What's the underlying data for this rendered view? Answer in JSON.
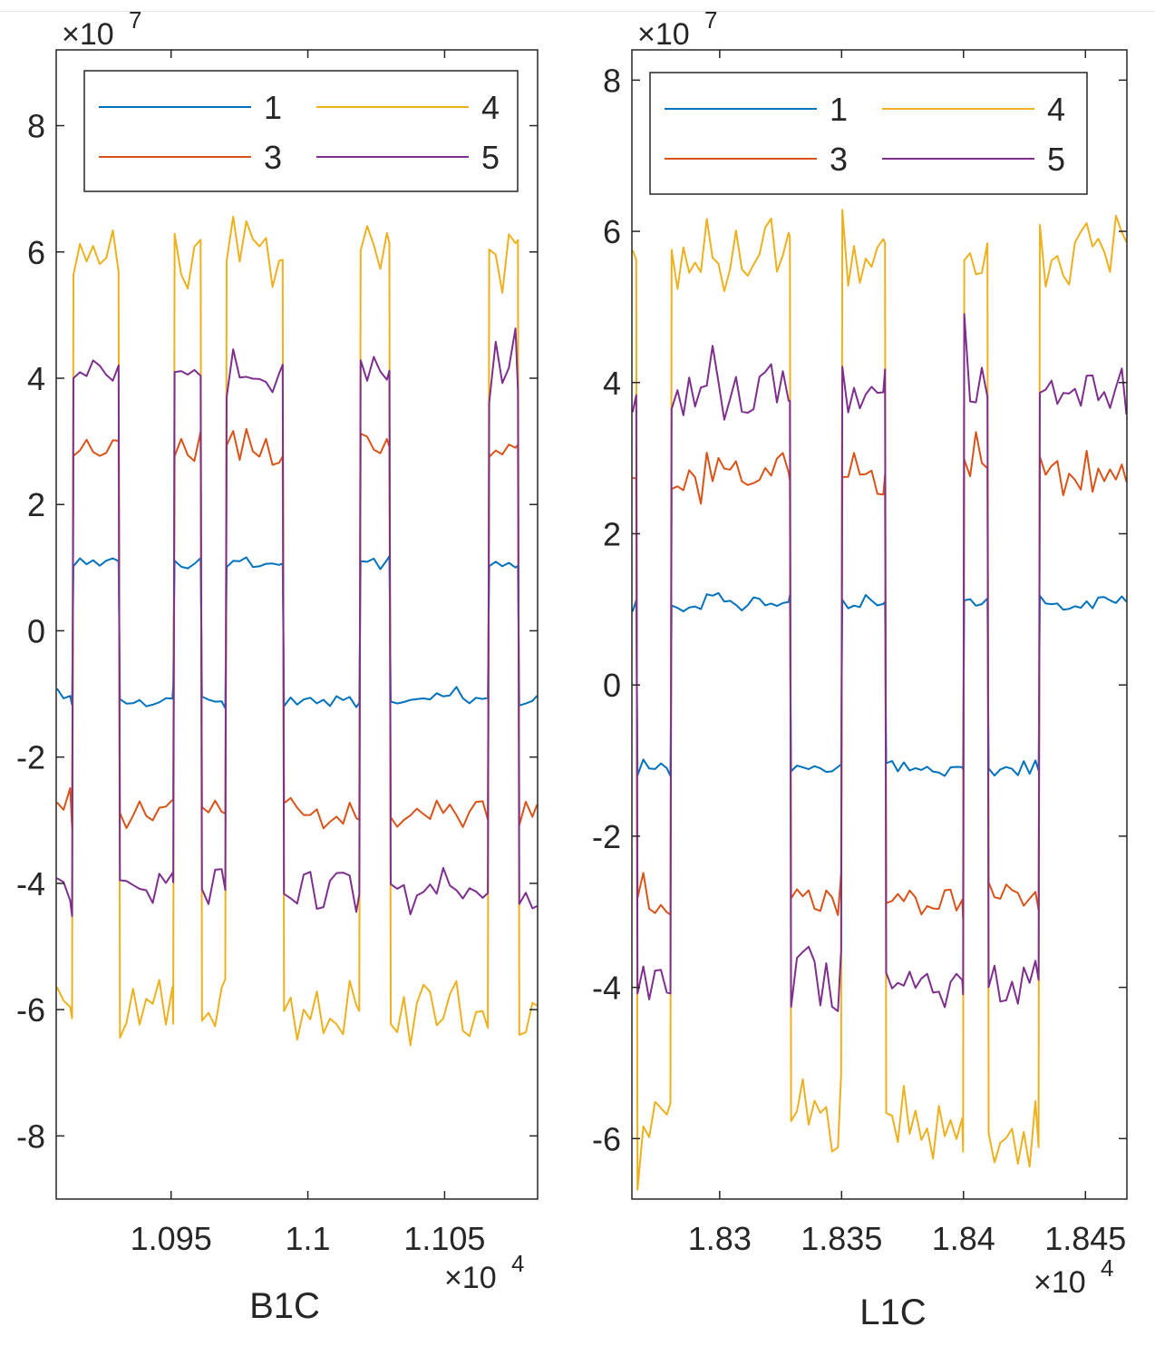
{
  "chart_data": [
    {
      "type": "line",
      "title": "",
      "xlabel": "B1C",
      "ylabel": "",
      "xlim": [
        10908,
        11084
      ],
      "ylim": [
        -90000000,
        92000000
      ],
      "x_ticks": [
        10950,
        11000,
        11050
      ],
      "x_tick_labels": [
        "1.095",
        "1.1",
        "1.105"
      ],
      "y_ticks": [
        -80000000,
        -60000000,
        -40000000,
        -20000000,
        0,
        20000000,
        40000000,
        60000000,
        80000000
      ],
      "y_tick_labels": [
        "-8",
        "-6",
        "-4",
        "-2",
        "0",
        "2",
        "4",
        "6",
        "8"
      ],
      "y_exponent_label": "×10",
      "y_exponent_power": "7",
      "x_exponent_label": "×10",
      "x_exponent_power": "4",
      "grid": false,
      "legend_position": "top",
      "segment_breaks": [
        10908,
        10914,
        10931,
        10951,
        10961,
        10970,
        10991,
        11019,
        11030,
        11066,
        11077,
        11084
      ],
      "segment_signs": [
        -1,
        1,
        -1,
        1,
        -1,
        1,
        -1,
        1,
        -1,
        1,
        -1
      ],
      "series": [
        {
          "name": "1",
          "color": "#0072BD",
          "level_millions": 11
        },
        {
          "name": "3",
          "color": "#D95319",
          "level_millions": 29
        },
        {
          "name": "4",
          "color": "#EDB120",
          "level_millions": 60
        },
        {
          "name": "5",
          "color": "#7E2F8E",
          "level_millions": 41
        }
      ]
    },
    {
      "type": "line",
      "title": "",
      "xlabel": "L1C",
      "ylabel": "",
      "xlim": [
        18264,
        18467
      ],
      "ylim": [
        -68000000,
        84000000
      ],
      "x_ticks": [
        18300,
        18350,
        18400,
        18450
      ],
      "x_tick_labels": [
        "1.83",
        "1.835",
        "1.84",
        "1.845"
      ],
      "y_ticks": [
        -60000000,
        -40000000,
        -20000000,
        0,
        20000000,
        40000000,
        60000000,
        80000000
      ],
      "y_tick_labels": [
        "-6",
        "-4",
        "-2",
        "0",
        "2",
        "4",
        "6",
        "8"
      ],
      "y_exponent_label": "×10",
      "y_exponent_power": "7",
      "x_exponent_label": "×10",
      "x_exponent_power": "4",
      "grid": false,
      "legend_position": "top",
      "segment_breaks": [
        18264,
        18266,
        18280,
        18329,
        18350,
        18368,
        18400,
        18410,
        18431,
        18467
      ],
      "segment_signs": [
        1,
        -1,
        1,
        -1,
        1,
        -1,
        1,
        -1,
        1
      ],
      "series": [
        {
          "name": "1",
          "color": "#0072BD",
          "level_millions": 11
        },
        {
          "name": "3",
          "color": "#D95319",
          "level_millions": 28
        },
        {
          "name": "4",
          "color": "#EDB120",
          "level_millions": 57
        },
        {
          "name": "5",
          "color": "#7E2F8E",
          "level_millions": 39
        }
      ]
    }
  ]
}
